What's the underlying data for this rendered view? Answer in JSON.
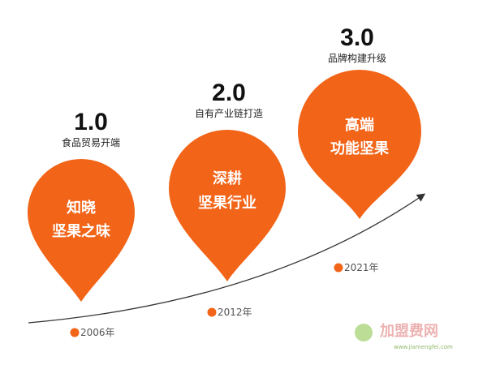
{
  "stages": [
    {
      "version": "1.0",
      "subtitle": "食品贸易开端",
      "label_lines": [
        "知晓",
        "坚果之味"
      ],
      "year": "2006年"
    },
    {
      "version": "2.0",
      "subtitle": "自有产业链打造",
      "label_lines": [
        "深耕",
        "坚果行业"
      ],
      "year": "2012年"
    },
    {
      "version": "3.0",
      "subtitle": "品牌构建升级",
      "label_lines": [
        "高端",
        "功能坚果"
      ],
      "year": "2021年"
    }
  ],
  "watermark": {
    "name": "加盟费网",
    "url": "www.jiamengfei.com"
  }
}
